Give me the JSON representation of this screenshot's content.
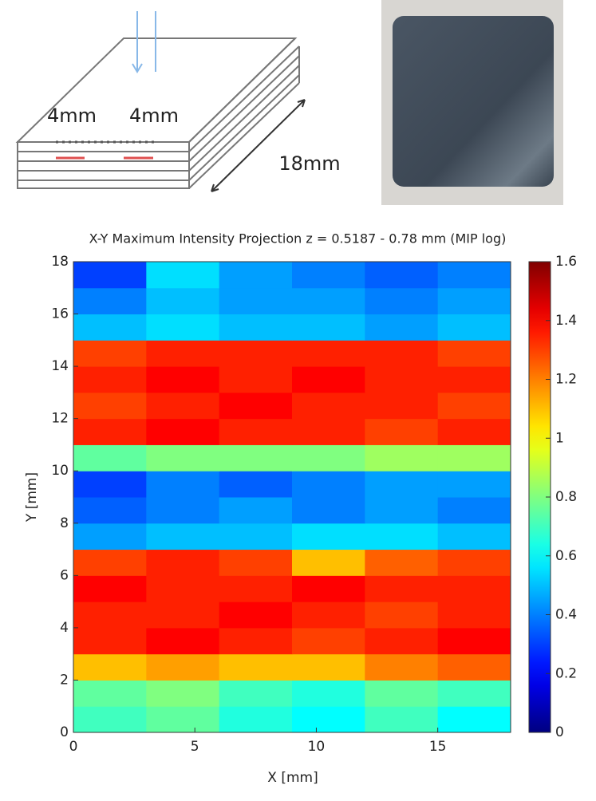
{
  "diagram": {
    "labels": [
      "4mm",
      "4mm",
      "18mm"
    ]
  },
  "chart_data": {
    "type": "heatmap",
    "title": "X-Y Maximum Intensity Projection z = 0.5187 - 0.78 mm (MIP log)",
    "x_label": "X [mm]",
    "y_label": "Y [mm]",
    "xlim": [
      0,
      18
    ],
    "xticks": [
      0,
      5,
      10,
      15
    ],
    "ylim": [
      0,
      18
    ],
    "yticks": [
      0,
      2,
      4,
      6,
      8,
      10,
      12,
      14,
      16,
      18
    ],
    "colormap": "jet",
    "clim": [
      0,
      1.6
    ],
    "cticks": [
      0,
      0.2,
      0.4,
      0.6,
      0.8,
      1,
      1.2,
      1.4,
      1.6
    ],
    "z": [
      [
        0.7,
        0.75,
        0.65,
        0.6,
        0.7,
        0.6
      ],
      [
        0.75,
        0.8,
        0.7,
        0.65,
        0.75,
        0.7
      ],
      [
        1.1,
        1.15,
        1.1,
        1.1,
        1.2,
        1.25
      ],
      [
        1.35,
        1.4,
        1.35,
        1.3,
        1.35,
        1.4
      ],
      [
        1.35,
        1.35,
        1.4,
        1.35,
        1.3,
        1.35
      ],
      [
        1.4,
        1.35,
        1.35,
        1.4,
        1.35,
        1.35
      ],
      [
        1.3,
        1.35,
        1.3,
        1.1,
        1.25,
        1.3
      ],
      [
        0.45,
        0.5,
        0.5,
        0.55,
        0.55,
        0.5
      ],
      [
        0.35,
        0.4,
        0.45,
        0.4,
        0.45,
        0.4
      ],
      [
        0.3,
        0.4,
        0.35,
        0.4,
        0.45,
        0.45
      ],
      [
        0.75,
        0.8,
        0.8,
        0.8,
        0.85,
        0.85
      ],
      [
        1.35,
        1.4,
        1.35,
        1.35,
        1.3,
        1.35
      ],
      [
        1.3,
        1.35,
        1.4,
        1.35,
        1.35,
        1.3
      ],
      [
        1.35,
        1.4,
        1.35,
        1.4,
        1.35,
        1.35
      ],
      [
        1.3,
        1.35,
        1.35,
        1.35,
        1.35,
        1.3
      ],
      [
        0.5,
        0.55,
        0.5,
        0.5,
        0.45,
        0.5
      ],
      [
        0.4,
        0.5,
        0.45,
        0.45,
        0.4,
        0.45
      ],
      [
        0.3,
        0.55,
        0.45,
        0.4,
        0.35,
        0.4
      ]
    ]
  }
}
